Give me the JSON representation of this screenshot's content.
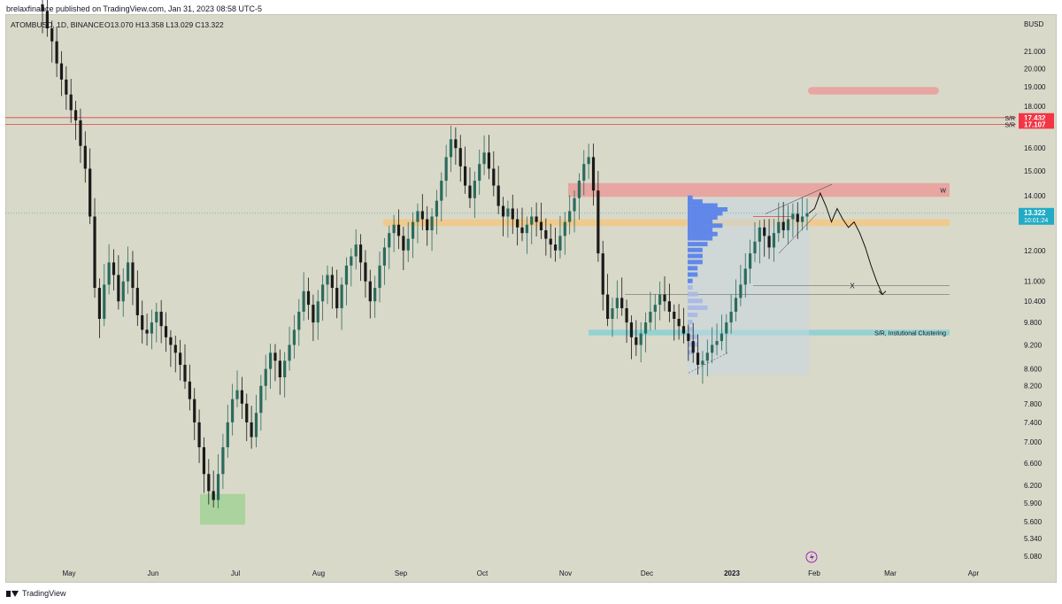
{
  "header": {
    "published": "brelaxfinance published on TradingView.com, Jan 31, 2023 08:58 UTC-5"
  },
  "chart_header": {
    "symbol": "ATOMBUSD, 1D, BINANCE",
    "ohlc": "O13.070  H13.358  L13.029  C13.322"
  },
  "chart_data": {
    "type": "candlestick",
    "symbol": "ATOMBUSD",
    "interval": "1D",
    "exchange": "BINANCE",
    "currency": "BUSD",
    "ohlc_last": {
      "open": 13.07,
      "high": 13.358,
      "low": 13.029,
      "close": 13.322
    },
    "y_scale": "log",
    "y_ticks": [
      "21.000",
      "20.000",
      "19.000",
      "18.000",
      "16.000",
      "15.000",
      "14.000",
      "12.000",
      "11.000",
      "10.400",
      "9.800",
      "9.200",
      "8.600",
      "8.200",
      "7.800",
      "7.400",
      "7.000",
      "6.600",
      "6.200",
      "5.900",
      "5.600",
      "5.340",
      "5.080"
    ],
    "x_ticks": [
      "May",
      "Jun",
      "Jul",
      "Aug",
      "Sep",
      "Oct",
      "Nov",
      "Dec",
      "2023",
      "Feb",
      "Mar",
      "Apr"
    ],
    "price_labels": [
      {
        "label": "S/R",
        "value": "17.432",
        "color": "#f23645"
      },
      {
        "label": "S/R",
        "value": "17.107",
        "color": "#f23645"
      },
      {
        "label": "",
        "value": "13.322",
        "sub": "10:01:24",
        "color": "#22abc4"
      }
    ],
    "zones": [
      {
        "label": "",
        "low": 18.6,
        "high": 19.0,
        "color": "#e8a3a0"
      },
      {
        "label": "W",
        "low": 13.95,
        "high": 14.5,
        "color": "#e8a3a0"
      },
      {
        "label": "",
        "low": 12.85,
        "high": 13.1,
        "color": "#f0c98b"
      },
      {
        "label": "S/R, Instutional Clustering",
        "low": 9.45,
        "high": 9.6,
        "color": "#8fd3d3"
      },
      {
        "label": "",
        "low": 5.55,
        "high": 6.05,
        "color": "#a9d39b"
      }
    ],
    "annotations": [
      "X",
      "W",
      "S/R, Instutional Clustering"
    ],
    "closes": [
      23.5,
      22.4,
      21.6,
      20.3,
      19.4,
      18.6,
      17.8,
      17.3,
      16.1,
      15.1,
      13.2,
      10.8,
      9.9,
      10.9,
      11.6,
      11.2,
      10.4,
      11.0,
      11.6,
      10.8,
      10.0,
      9.6,
      9.5,
      9.8,
      10.1,
      9.7,
      9.4,
      9.2,
      9.0,
      8.7,
      8.3,
      7.9,
      7.4,
      6.9,
      6.4,
      6.1,
      5.95,
      6.4,
      6.9,
      7.4,
      7.9,
      8.1,
      7.8,
      7.4,
      7.1,
      7.6,
      8.2,
      8.6,
      9.0,
      8.8,
      8.4,
      8.8,
      9.2,
      9.6,
      10.1,
      10.7,
      10.3,
      9.8,
      10.4,
      10.9,
      11.2,
      10.8,
      10.2,
      10.9,
      11.5,
      11.8,
      12.2,
      11.6,
      11.0,
      10.4,
      10.8,
      11.5,
      12.1,
      12.6,
      12.9,
      12.5,
      12.0,
      12.4,
      13.0,
      13.4,
      13.1,
      12.7,
      13.2,
      13.8,
      14.6,
      15.6,
      16.4,
      16.0,
      15.2,
      14.4,
      13.9,
      14.6,
      15.3,
      15.8,
      15.1,
      14.4,
      13.6,
      13.2,
      13.5,
      13.1,
      12.8,
      12.6,
      12.9,
      13.2,
      13.0,
      12.7,
      12.4,
      12.2,
      12.0,
      12.5,
      13.0,
      13.4,
      13.9,
      14.6,
      15.3,
      15.6,
      14.2,
      11.9,
      10.6,
      9.9,
      10.2,
      10.5,
      10.2,
      9.8,
      9.4,
      9.2,
      9.5,
      9.8,
      10.1,
      10.3,
      10.6,
      10.4,
      10.1,
      9.9,
      9.7,
      9.5,
      9.3,
      9.0,
      8.7,
      8.8,
      9.0,
      9.2,
      9.3,
      9.5,
      9.8,
      10.1,
      10.5,
      10.9,
      11.4,
      11.9,
      12.3,
      12.8,
      12.5,
      12.1,
      12.6,
      13.0,
      12.7,
      13.1,
      13.3,
      13.0,
      13.2,
      13.322
    ],
    "projection": [
      13.32,
      13.5,
      14.1,
      13.6,
      13.0,
      13.5,
      13.1,
      12.8,
      13.0,
      12.6,
      12.1,
      11.5,
      11.0,
      10.6
    ],
    "volume_profile_levels": [
      13.9,
      13.75,
      13.6,
      13.45,
      13.3,
      13.15,
      13.0,
      12.85,
      12.7,
      12.55,
      12.4,
      12.2,
      12.0,
      11.8,
      11.6,
      11.4,
      11.2,
      11.0,
      10.8,
      10.6,
      10.4,
      10.2,
      10.0,
      9.8,
      9.6,
      9.4,
      9.2,
      9.0
    ],
    "volume_profile_values": [
      1,
      3,
      6,
      8,
      7,
      6,
      5,
      7,
      5,
      6,
      5,
      4,
      3,
      3,
      3,
      2,
      2,
      1,
      1,
      2,
      3,
      4,
      2,
      1,
      1,
      2,
      2,
      1
    ]
  },
  "footer": {
    "brand": "TradingView"
  }
}
